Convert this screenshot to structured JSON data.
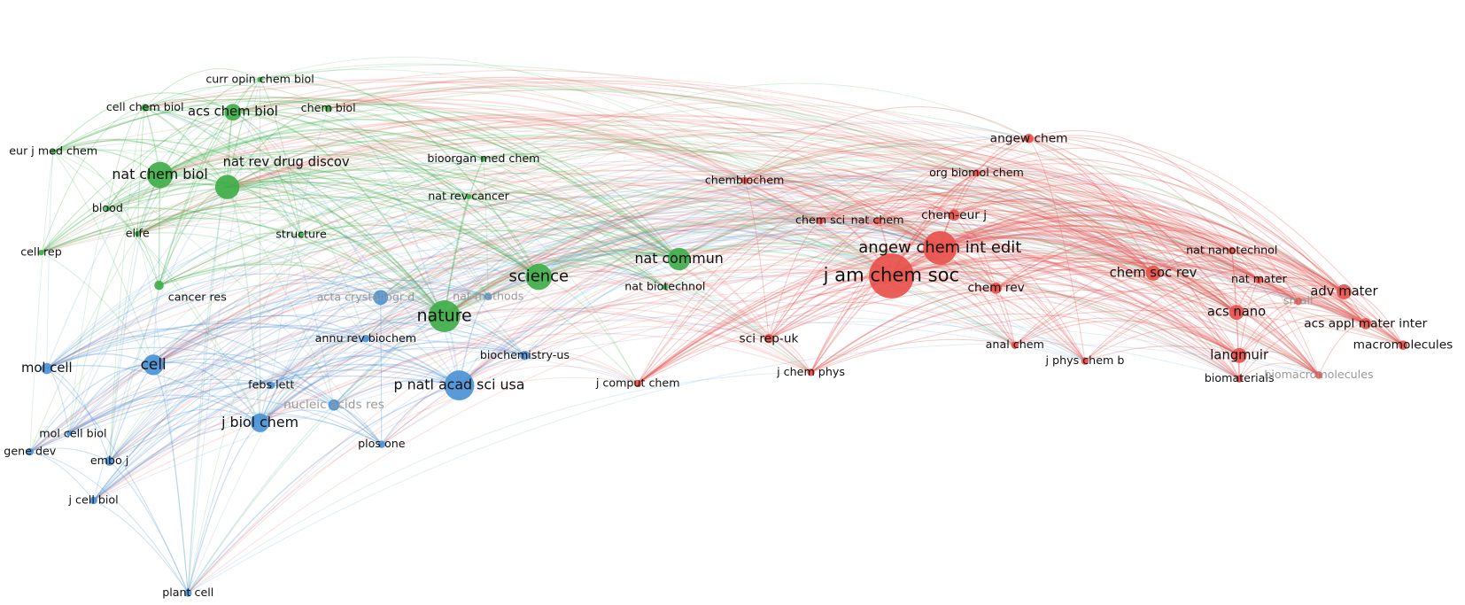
{
  "clusters": [
    {
      "color": "#3fae49",
      "nodes": [
        "curr opin chem biol",
        "cell chem biol",
        "acs chem biol",
        "chem biol",
        "eur j med chem",
        "nat chem biol",
        "nat rev drug discov",
        "bioorgan med chem",
        "blood",
        "elife",
        "structure",
        "nat rev cancer",
        "cell rep",
        "cancer res",
        "science",
        "nat commun",
        "nat biotechnol",
        "nature"
      ]
    },
    {
      "color": "#4b93d6",
      "nodes": [
        "acta crystallogr d",
        "nat methods",
        "annu rev biochem",
        "mol cell",
        "cell",
        "biochemistry-us",
        "febs lett",
        "p natl acad sci usa",
        "nucleic acids res",
        "j biol chem",
        "mol cell biol",
        "gene dev",
        "embo j",
        "plos one",
        "j cell biol",
        "plant cell"
      ]
    },
    {
      "color": "#e8514b",
      "nodes": [
        "angew chem",
        "org biomol chem",
        "chembiochem",
        "chem sci",
        "nat chem",
        "chem-eur j",
        "angew chem int edit",
        "j am chem soc",
        "chem rev",
        "nat nanotechnol",
        "chem soc rev",
        "nat mater",
        "small",
        "adv mater",
        "acs nano",
        "acs appl mater inter",
        "macromolecules",
        "sci rep-uk",
        "anal chem",
        "j phys chem b",
        "langmuir",
        "biomaterials",
        "biomacromolecules",
        "j chem phys",
        "j comput chem"
      ]
    }
  ]
}
